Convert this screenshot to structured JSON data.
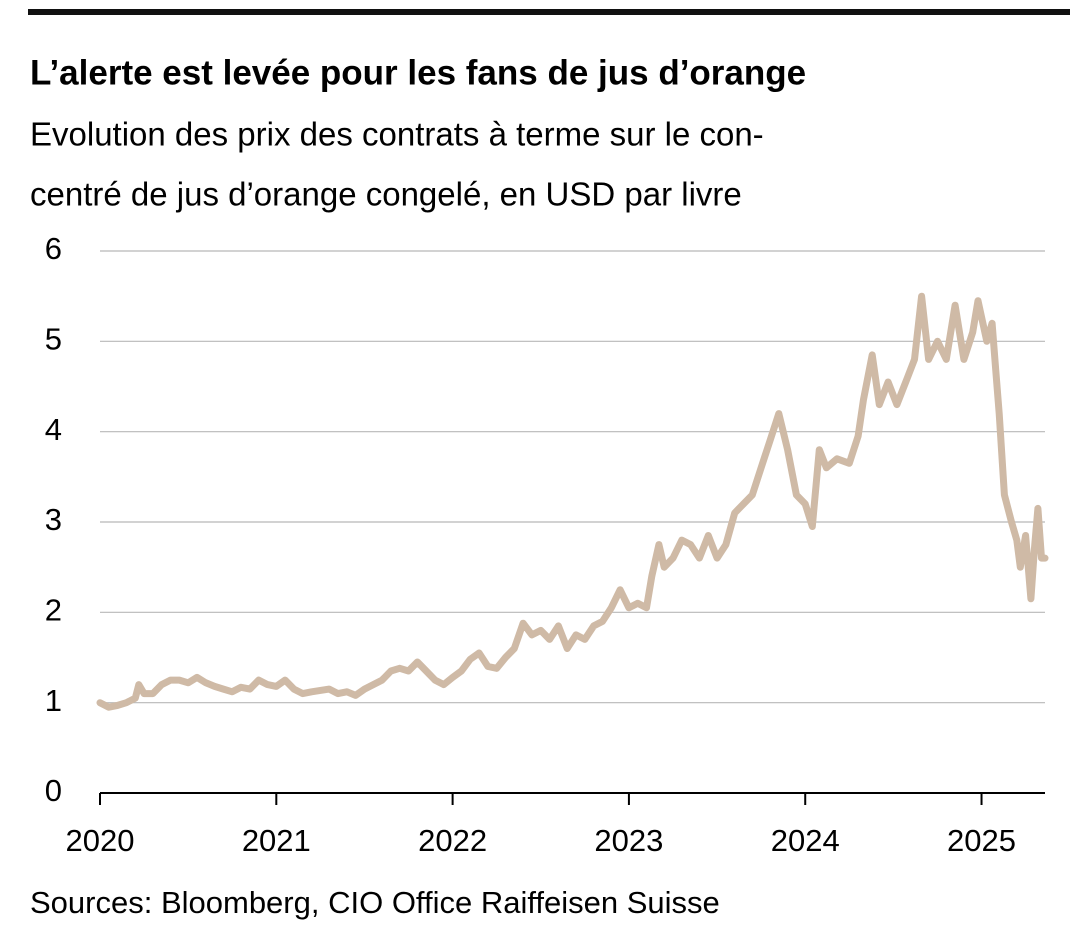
{
  "chart_data": {
    "type": "line",
    "title": "L’alerte est levée pour les fans de jus d’orange",
    "subtitle": [
      "Evolution des prix des contrats à terme sur le con-",
      "centré de jus d’orange congelé, en USD par livre"
    ],
    "source": "Sources: Bloomberg, CIO Office Raiffeisen Suisse",
    "x": [
      2020.0,
      2020.05,
      2020.1,
      2020.15,
      2020.2,
      2020.22,
      2020.25,
      2020.3,
      2020.35,
      2020.4,
      2020.45,
      2020.5,
      2020.55,
      2020.6,
      2020.65,
      2020.7,
      2020.75,
      2020.8,
      2020.85,
      2020.9,
      2020.95,
      2021.0,
      2021.05,
      2021.1,
      2021.15,
      2021.2,
      2021.3,
      2021.35,
      2021.4,
      2021.45,
      2021.5,
      2021.55,
      2021.6,
      2021.65,
      2021.7,
      2021.75,
      2021.8,
      2021.85,
      2021.9,
      2021.95,
      2022.0,
      2022.05,
      2022.1,
      2022.15,
      2022.2,
      2022.25,
      2022.3,
      2022.35,
      2022.4,
      2022.45,
      2022.5,
      2022.55,
      2022.6,
      2022.65,
      2022.7,
      2022.75,
      2022.8,
      2022.85,
      2022.9,
      2022.95,
      2023.0,
      2023.05,
      2023.1,
      2023.13,
      2023.17,
      2023.2,
      2023.25,
      2023.3,
      2023.35,
      2023.4,
      2023.45,
      2023.5,
      2023.55,
      2023.6,
      2023.65,
      2023.7,
      2023.75,
      2023.8,
      2023.85,
      2023.9,
      2023.95,
      2024.0,
      2024.04,
      2024.08,
      2024.12,
      2024.18,
      2024.25,
      2024.3,
      2024.33,
      2024.38,
      2024.42,
      2024.47,
      2024.52,
      2024.58,
      2024.62,
      2024.66,
      2024.7,
      2024.75,
      2024.8,
      2024.85,
      2024.9,
      2024.95,
      2024.98,
      2025.03,
      2025.06,
      2025.08,
      2025.1,
      2025.13,
      2025.17,
      2025.2,
      2025.22,
      2025.25,
      2025.28,
      2025.3,
      2025.32,
      2025.34,
      2025.36
    ],
    "series": [
      {
        "color": "#cfbaa6",
        "values": [
          1.0,
          0.95,
          0.97,
          1.0,
          1.05,
          1.2,
          1.1,
          1.1,
          1.2,
          1.25,
          1.25,
          1.22,
          1.28,
          1.22,
          1.18,
          1.15,
          1.12,
          1.17,
          1.15,
          1.25,
          1.2,
          1.18,
          1.25,
          1.15,
          1.1,
          1.12,
          1.15,
          1.1,
          1.12,
          1.08,
          1.15,
          1.2,
          1.25,
          1.35,
          1.38,
          1.35,
          1.45,
          1.35,
          1.25,
          1.2,
          1.28,
          1.35,
          1.48,
          1.55,
          1.4,
          1.38,
          1.5,
          1.6,
          1.88,
          1.75,
          1.8,
          1.7,
          1.85,
          1.6,
          1.75,
          1.7,
          1.85,
          1.9,
          2.05,
          2.25,
          2.05,
          2.1,
          2.05,
          2.4,
          2.75,
          2.5,
          2.6,
          2.8,
          2.75,
          2.6,
          2.85,
          2.6,
          2.75,
          3.1,
          3.2,
          3.3,
          3.6,
          3.9,
          4.2,
          3.8,
          3.3,
          3.2,
          2.95,
          3.8,
          3.6,
          3.7,
          3.65,
          3.95,
          4.35,
          4.85,
          4.3,
          4.55,
          4.3,
          4.6,
          4.8,
          5.5,
          4.8,
          5.0,
          4.8,
          5.4,
          4.8,
          5.1,
          5.45,
          5.0,
          5.2,
          4.7,
          4.2,
          3.3,
          3.0,
          2.8,
          2.5,
          2.85,
          2.15,
          2.7,
          3.15,
          2.6,
          2.6
        ]
      }
    ],
    "xlim": [
      2020,
      2025.36
    ],
    "xticks": [
      2020,
      2021,
      2022,
      2023,
      2024,
      2025
    ],
    "ylim": [
      0,
      6
    ],
    "yticks": [
      0,
      1,
      2,
      3,
      4,
      5,
      6
    ],
    "grid": true
  }
}
